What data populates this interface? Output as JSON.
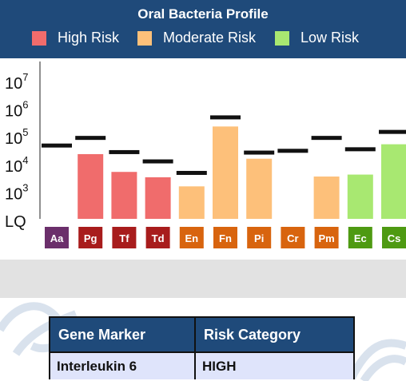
{
  "header": {
    "title": "Oral Bacteria Profile",
    "legend": [
      {
        "label": "High Risk",
        "color": "#f06c6c"
      },
      {
        "label": "Moderate Risk",
        "color": "#fdc07a"
      },
      {
        "label": "Low Risk",
        "color": "#a8e871"
      }
    ]
  },
  "chart_data": {
    "type": "bar",
    "y_scale": "log",
    "y_ticks": [
      {
        "label": "LQ",
        "value": 100
      },
      {
        "label": "10",
        "exp": "3",
        "value": 1000
      },
      {
        "label": "10",
        "exp": "4",
        "value": 10000
      },
      {
        "label": "10",
        "exp": "5",
        "value": 100000
      },
      {
        "label": "10",
        "exp": "6",
        "value": 1000000
      },
      {
        "label": "10",
        "exp": "7",
        "value": 10000000
      }
    ],
    "ylim": [
      100,
      10000000
    ],
    "categories": [
      "Aa",
      "Pg",
      "Tf",
      "Td",
      "En",
      "Fn",
      "Pi",
      "Cr",
      "Pm",
      "Ec",
      "Cs"
    ],
    "category_colors": [
      "#6b2f6b",
      "#a81c1c",
      "#a81c1c",
      "#a81c1c",
      "#d8640e",
      "#d8640e",
      "#d8640e",
      "#d8640e",
      "#d8640e",
      "#4e9a12",
      "#4e9a12"
    ],
    "values": [
      null,
      22000,
      5000,
      3200,
      1500,
      220000,
      15000,
      null,
      3400,
      4000,
      50000
    ],
    "bar_colors": [
      "#f06c6c",
      "#f06c6c",
      "#f06c6c",
      "#f06c6c",
      "#fdc07a",
      "#fdc07a",
      "#fdc07a",
      "#fdc07a",
      "#fdc07a",
      "#a8e871",
      "#a8e871"
    ],
    "threshold_values": [
      45000,
      85000,
      26000,
      12000,
      4600,
      470000,
      25000,
      29000,
      85000,
      33000,
      140000
    ]
  },
  "table": {
    "headers": [
      "Gene Marker",
      "Risk Category"
    ],
    "rows": [
      [
        "Interleukin 6",
        "HIGH"
      ]
    ]
  }
}
